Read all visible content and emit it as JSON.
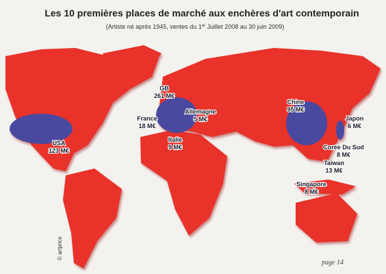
{
  "header": {
    "title": "Les 10 premières places de marché aux enchères d'art contemporain",
    "subtitle_parts": [
      "(Artiste né après 1945, ventes du 1",
      "er",
      " Juillet 2008 au 30 juin 2009)"
    ]
  },
  "markets": [
    {
      "country": "GB",
      "amount": "261 M€"
    },
    {
      "country": "France",
      "amount": "18 M€"
    },
    {
      "country": "Allemagne",
      "amount": "5 M€"
    },
    {
      "country": "Italie",
      "amount": "9 M€"
    },
    {
      "country": "USA",
      "amount": "123 M€"
    },
    {
      "country": "Chine",
      "amount": "95 M€"
    },
    {
      "country": "Japon",
      "amount": "6 M€"
    },
    {
      "country": "Corée Du Sud",
      "amount": "8 M€"
    },
    {
      "country": "Taiwan",
      "amount": "13 M€"
    },
    {
      "country": "Singapore",
      "amount": "8 M€"
    }
  ],
  "credit": "© artprice",
  "page": "page 14"
}
